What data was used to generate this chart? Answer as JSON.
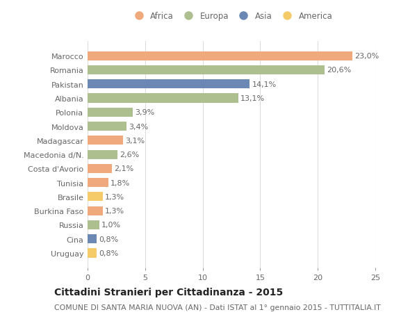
{
  "countries": [
    "Marocco",
    "Romania",
    "Pakistan",
    "Albania",
    "Polonia",
    "Moldova",
    "Madagascar",
    "Macedonia d/N.",
    "Costa d'Avorio",
    "Tunisia",
    "Brasile",
    "Burkina Faso",
    "Russia",
    "Cina",
    "Uruguay"
  ],
  "values": [
    23.0,
    20.6,
    14.1,
    13.1,
    3.9,
    3.4,
    3.1,
    2.6,
    2.1,
    1.8,
    1.3,
    1.3,
    1.0,
    0.8,
    0.8
  ],
  "labels": [
    "23,0%",
    "20,6%",
    "14,1%",
    "13,1%",
    "3,9%",
    "3,4%",
    "3,1%",
    "2,6%",
    "2,1%",
    "1,8%",
    "1,3%",
    "1,3%",
    "1,0%",
    "0,8%",
    "0,8%"
  ],
  "continents": [
    "Africa",
    "Europa",
    "Asia",
    "Europa",
    "Europa",
    "Europa",
    "Africa",
    "Europa",
    "Africa",
    "Africa",
    "America",
    "Africa",
    "Europa",
    "Asia",
    "America"
  ],
  "colors": {
    "Africa": "#F0A97C",
    "Europa": "#ADBF8E",
    "Asia": "#6B88B5",
    "America": "#F5CB6A"
  },
  "legend_order": [
    "Africa",
    "Europa",
    "Asia",
    "America"
  ],
  "xlim": [
    0,
    25
  ],
  "xticks": [
    0,
    5,
    10,
    15,
    20,
    25
  ],
  "title": "Cittadini Stranieri per Cittadinanza - 2015",
  "subtitle": "COMUNE DI SANTA MARIA NUOVA (AN) - Dati ISTAT al 1° gennaio 2015 - TUTTITALIA.IT",
  "background_color": "#ffffff",
  "bar_height": 0.65,
  "grid_color": "#dddddd",
  "label_fontsize": 8.0,
  "title_fontsize": 10.0,
  "subtitle_fontsize": 7.8,
  "ytick_fontsize": 8.0,
  "xtick_fontsize": 8.0,
  "legend_fontsize": 8.5,
  "text_color": "#666666",
  "title_color": "#222222"
}
